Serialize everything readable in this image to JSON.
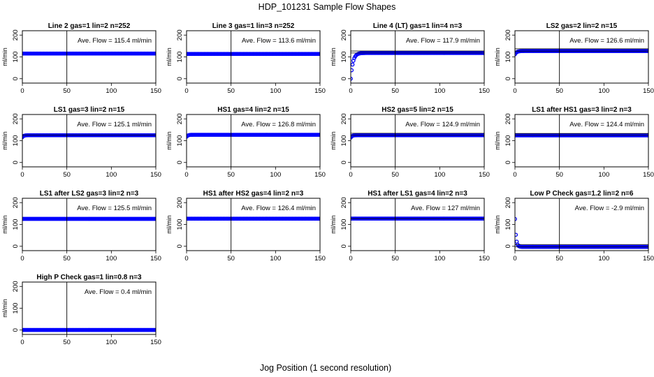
{
  "figure": {
    "title": "HDP_101231  Sample Flow Shapes",
    "xlabel": "Jog Position (1 second resolution)"
  },
  "chart_data": [
    {
      "type": "scatter",
      "title": "Line 2 gas=1 lin=2 n=252",
      "ylabel": "ml/min",
      "xlim": [
        0,
        150
      ],
      "ylim": [
        -20,
        220
      ],
      "xticks": [
        0,
        50,
        100,
        150
      ],
      "yticks": [
        0,
        100,
        200
      ],
      "avg_label": "Ave. Flow = 115.4  ml/min",
      "avg_value": 115.4,
      "vline_x": 50,
      "hlines": [],
      "series": [
        {
          "color": "#0000ff",
          "shape": {
            "kind": "flat",
            "level": 115.4
          }
        }
      ]
    },
    {
      "type": "scatter",
      "title": "Line 3 gas=1 lin=3 n=252",
      "ylabel": "ml/min",
      "xlim": [
        0,
        150
      ],
      "ylim": [
        -20,
        220
      ],
      "xticks": [
        0,
        50,
        100,
        150
      ],
      "yticks": [
        0,
        100,
        200
      ],
      "avg_label": "Ave. Flow = 113.6  ml/min",
      "avg_value": 113.6,
      "vline_x": 50,
      "hlines": [],
      "series": [
        {
          "color": "#0000ff",
          "shape": {
            "kind": "flat",
            "level": 113.6
          }
        }
      ]
    },
    {
      "type": "scatter",
      "title": "Line 4 (LT) gas=1 lin=4 n=3",
      "ylabel": "ml/min",
      "xlim": [
        0,
        150
      ],
      "ylim": [
        -20,
        220
      ],
      "xticks": [
        0,
        50,
        100,
        150
      ],
      "yticks": [
        0,
        100,
        200
      ],
      "avg_label": "Ave. Flow = 117.9  ml/min",
      "avg_value": 117.9,
      "vline_x": 50,
      "hlines": [
        117.9,
        127
      ],
      "series": [
        {
          "color": "#0000ff",
          "shape": {
            "kind": "rise",
            "level": 118,
            "start": 0,
            "tau": 2.5
          }
        }
      ]
    },
    {
      "type": "scatter",
      "title": "LS2 gas=2 lin=2 n=15",
      "ylabel": "ml/min",
      "xlim": [
        0,
        150
      ],
      "ylim": [
        -20,
        220
      ],
      "xticks": [
        0,
        50,
        100,
        150
      ],
      "yticks": [
        0,
        100,
        200
      ],
      "avg_label": "Ave. Flow = 126.6  ml/min",
      "avg_value": 126.6,
      "vline_x": 50,
      "hlines": [
        126.6,
        137
      ],
      "series": [
        {
          "color": "#0000ff",
          "shape": {
            "kind": "rise",
            "level": 127,
            "start": 112,
            "tau": 2
          }
        }
      ]
    },
    {
      "type": "scatter",
      "title": "LS1 gas=3 lin=2 n=15",
      "ylabel": "ml/min",
      "xlim": [
        0,
        150
      ],
      "ylim": [
        -20,
        220
      ],
      "xticks": [
        0,
        50,
        100,
        150
      ],
      "yticks": [
        0,
        100,
        200
      ],
      "avg_label": "Ave. Flow = 125.1  ml/min",
      "avg_value": 125.1,
      "vline_x": 50,
      "hlines": [
        125.1
      ],
      "series": [
        {
          "color": "#0000ff",
          "shape": {
            "kind": "rise",
            "level": 125,
            "start": 116,
            "tau": 1.5
          }
        }
      ]
    },
    {
      "type": "scatter",
      "title": "HS1 gas=4 lin=2 n=15",
      "ylabel": "ml/min",
      "xlim": [
        0,
        150
      ],
      "ylim": [
        -20,
        220
      ],
      "xticks": [
        0,
        50,
        100,
        150
      ],
      "yticks": [
        0,
        100,
        200
      ],
      "avg_label": "Ave. Flow = 126.8  ml/min",
      "avg_value": 126.8,
      "vline_x": 50,
      "hlines": [],
      "series": [
        {
          "color": "#0000ff",
          "shape": {
            "kind": "rise",
            "level": 127,
            "start": 118,
            "tau": 1.5
          }
        }
      ]
    },
    {
      "type": "scatter",
      "title": "HS2 gas=5 lin=2 n=15",
      "ylabel": "ml/min",
      "xlim": [
        0,
        150
      ],
      "ylim": [
        -20,
        220
      ],
      "xticks": [
        0,
        50,
        100,
        150
      ],
      "yticks": [
        0,
        100,
        200
      ],
      "avg_label": "Ave. Flow = 124.9  ml/min",
      "avg_value": 124.9,
      "vline_x": 50,
      "hlines": [
        124.9,
        134
      ],
      "series": [
        {
          "color": "#0000ff",
          "shape": {
            "kind": "rise",
            "level": 125,
            "start": 114,
            "tau": 1.5
          }
        }
      ]
    },
    {
      "type": "scatter",
      "title": "LS1 after HS1 gas=3 lin=2 n=3",
      "ylabel": "ml/min",
      "xlim": [
        0,
        150
      ],
      "ylim": [
        -20,
        220
      ],
      "xticks": [
        0,
        50,
        100,
        150
      ],
      "yticks": [
        0,
        100,
        200
      ],
      "avg_label": "Ave. Flow = 124.4  ml/min",
      "avg_value": 124.4,
      "vline_x": 50,
      "hlines": [
        124.4,
        133
      ],
      "series": [
        {
          "color": "#0000ff",
          "shape": {
            "kind": "flat",
            "level": 124.4
          }
        }
      ]
    },
    {
      "type": "scatter",
      "title": "LS1 after LS2 gas=3 lin=2 n=3",
      "ylabel": "ml/min",
      "xlim": [
        0,
        150
      ],
      "ylim": [
        -20,
        220
      ],
      "xticks": [
        0,
        50,
        100,
        150
      ],
      "yticks": [
        0,
        100,
        200
      ],
      "avg_label": "Ave. Flow = 125.5  ml/min",
      "avg_value": 125.5,
      "vline_x": 50,
      "hlines": [],
      "series": [
        {
          "color": "#0000ff",
          "shape": {
            "kind": "flat",
            "level": 125.5
          }
        }
      ]
    },
    {
      "type": "scatter",
      "title": "HS1 after HS2 gas=4 lin=2 n=3",
      "ylabel": "ml/min",
      "xlim": [
        0,
        150
      ],
      "ylim": [
        -20,
        220
      ],
      "xticks": [
        0,
        50,
        100,
        150
      ],
      "yticks": [
        0,
        100,
        200
      ],
      "avg_label": "Ave. Flow = 126.4  ml/min",
      "avg_value": 126.4,
      "vline_x": 50,
      "hlines": [],
      "series": [
        {
          "color": "#0000ff",
          "shape": {
            "kind": "flat",
            "level": 126.4
          }
        }
      ]
    },
    {
      "type": "scatter",
      "title": "HS1 after LS1 gas=4 lin=2 n=3",
      "ylabel": "ml/min",
      "xlim": [
        0,
        150
      ],
      "ylim": [
        -20,
        220
      ],
      "xticks": [
        0,
        50,
        100,
        150
      ],
      "yticks": [
        0,
        100,
        200
      ],
      "avg_label": "Ave. Flow = 127  ml/min",
      "avg_value": 127,
      "vline_x": 50,
      "hlines": [
        127
      ],
      "series": [
        {
          "color": "#0000ff",
          "shape": {
            "kind": "flat",
            "level": 127
          }
        }
      ]
    },
    {
      "type": "scatter",
      "title": "Low P Check gas=1.2 lin=2 n=6",
      "ylabel": "ml/min",
      "xlim": [
        0,
        150
      ],
      "ylim": [
        -20,
        220
      ],
      "xticks": [
        0,
        50,
        100,
        150
      ],
      "yticks": [
        0,
        100,
        200
      ],
      "avg_label": "Ave. Flow = -2.9  ml/min",
      "avg_value": -2.9,
      "vline_x": 50,
      "hlines": [
        -2.9,
        8
      ],
      "series": [
        {
          "color": "#0000ff",
          "shape": {
            "kind": "decay",
            "level": -2.9,
            "start": 125,
            "tau": 1.2
          }
        }
      ]
    },
    {
      "type": "scatter",
      "title": "High P Check gas=1 lin=0.8 n=3",
      "ylabel": "ml/min",
      "xlim": [
        0,
        150
      ],
      "ylim": [
        -20,
        220
      ],
      "xticks": [
        0,
        50,
        100,
        150
      ],
      "yticks": [
        0,
        100,
        200
      ],
      "avg_label": "Ave. Flow = 0.4  ml/min",
      "avg_value": 0.4,
      "vline_x": 50,
      "hlines": [],
      "series": [
        {
          "color": "#0000ff",
          "shape": {
            "kind": "flat",
            "level": 0.4
          }
        }
      ]
    }
  ]
}
